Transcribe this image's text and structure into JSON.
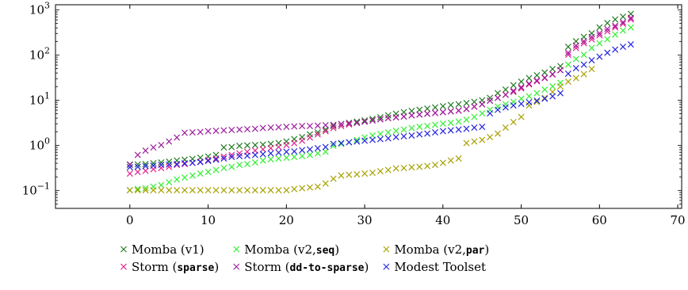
{
  "chart_data": {
    "type": "scatter",
    "title": "",
    "xlabel": "",
    "ylabel": "",
    "xlim": [
      -9.5,
      70.5
    ],
    "ylim": [
      0.04,
      1300
    ],
    "yscale": "log",
    "grid": false,
    "legend_position": "bottom",
    "x_ticks": [
      0,
      10,
      20,
      30,
      40,
      50,
      60,
      70
    ],
    "x_tick_labels": [
      "0",
      "10",
      "20",
      "30",
      "40",
      "50",
      "60",
      "70"
    ],
    "y_ticks": [
      0.1,
      1,
      10,
      100,
      1000
    ],
    "y_tick_labels": [
      {
        "base": "10",
        "exp": "−1"
      },
      {
        "base": "10",
        "exp": "0"
      },
      {
        "base": "10",
        "exp": "1"
      },
      {
        "base": "10",
        "exp": "2"
      },
      {
        "base": "10",
        "exp": "3"
      }
    ],
    "marker": "×",
    "series": [
      {
        "name": "Momba (v1)",
        "label_parts": [
          {
            "text": "Momba (v1)",
            "mono": false
          }
        ],
        "color": "#1e7a1e",
        "start": 0,
        "values": [
          0.36,
          0.37,
          0.38,
          0.39,
          0.41,
          0.43,
          0.45,
          0.47,
          0.49,
          0.52,
          0.55,
          0.6,
          0.88,
          0.9,
          0.95,
          0.98,
          1.0,
          1.02,
          1.05,
          1.1,
          1.2,
          1.35,
          1.5,
          1.7,
          1.9,
          2.2,
          2.6,
          2.9,
          3.1,
          3.3,
          3.5,
          3.8,
          4.1,
          4.5,
          4.9,
          5.3,
          5.7,
          6.0,
          6.4,
          6.8,
          7.2,
          7.6,
          8.0,
          8.5,
          9.0,
          9.7,
          11,
          14,
          17,
          21,
          25,
          30,
          35,
          40,
          48,
          56,
          150,
          200,
          250,
          300,
          400,
          500,
          600,
          700,
          800
        ]
      },
      {
        "name": "Momba (v2,seq)",
        "label_parts": [
          {
            "text": "Momba (v2,",
            "mono": false
          },
          {
            "text": "seq",
            "mono": true
          },
          {
            "text": ")",
            "mono": false
          }
        ],
        "color": "#33ee33",
        "start": 0,
        "values": [
          0.1,
          0.105,
          0.11,
          0.12,
          0.13,
          0.15,
          0.17,
          0.19,
          0.21,
          0.23,
          0.25,
          0.28,
          0.31,
          0.33,
          0.36,
          0.38,
          0.41,
          0.45,
          0.48,
          0.5,
          0.52,
          0.54,
          0.56,
          0.6,
          0.65,
          0.7,
          0.95,
          1.05,
          1.15,
          1.3,
          1.45,
          1.6,
          1.75,
          1.9,
          2.05,
          2.2,
          2.35,
          2.5,
          2.65,
          2.8,
          2.95,
          3.1,
          3.3,
          3.6,
          4.2,
          5.0,
          6.0,
          7.0,
          8.0,
          9.0,
          10.5,
          12,
          14,
          17,
          20,
          24,
          60,
          80,
          100,
          140,
          180,
          220,
          280,
          340,
          400
        ]
      },
      {
        "name": "Momba (v2,par)",
        "label_parts": [
          {
            "text": "Momba (v2,",
            "mono": false
          },
          {
            "text": "par",
            "mono": true
          },
          {
            "text": ")",
            "mono": false
          }
        ],
        "color": "#a8a000",
        "start": 0,
        "values": [
          0.1,
          0.1,
          0.1,
          0.1,
          0.1,
          0.1,
          0.1,
          0.1,
          0.1,
          0.1,
          0.1,
          0.1,
          0.1,
          0.1,
          0.1,
          0.1,
          0.1,
          0.1,
          0.1,
          0.1,
          0.1,
          0.105,
          0.11,
          0.115,
          0.12,
          0.14,
          0.18,
          0.21,
          0.22,
          0.225,
          0.23,
          0.24,
          0.26,
          0.28,
          0.3,
          0.31,
          0.32,
          0.33,
          0.34,
          0.36,
          0.4,
          0.45,
          0.5,
          1.1,
          1.2,
          1.3,
          1.5,
          1.8,
          2.4,
          3.2,
          4.2,
          7.5,
          9,
          11,
          15,
          20,
          25,
          30,
          37,
          48
        ]
      },
      {
        "name": "Storm (sparse)",
        "label_parts": [
          {
            "text": "Storm (",
            "mono": false
          },
          {
            "text": "sparse",
            "mono": true
          },
          {
            "text": ")",
            "mono": false
          }
        ],
        "color": "#e0208e",
        "start": 0,
        "values": [
          0.23,
          0.25,
          0.27,
          0.29,
          0.31,
          0.33,
          0.36,
          0.38,
          0.4,
          0.43,
          0.46,
          0.5,
          0.55,
          0.6,
          0.65,
          0.7,
          0.75,
          0.8,
          0.85,
          0.9,
          1.0,
          1.1,
          1.25,
          1.45,
          1.7,
          2.0,
          2.35,
          2.6,
          2.85,
          3.1,
          3.3,
          3.5,
          3.7,
          3.9,
          4.1,
          4.3,
          4.5,
          4.7,
          4.9,
          5.1,
          5.3,
          5.5,
          5.8,
          6.2,
          7.0,
          8.0,
          9.5,
          11,
          13,
          15,
          18,
          22,
          26,
          30,
          36,
          45,
          100,
          140,
          180,
          220,
          270,
          330,
          400,
          480,
          600
        ]
      },
      {
        "name": "Storm (dd-to-sparse)",
        "label_parts": [
          {
            "text": "Storm (",
            "mono": false
          },
          {
            "text": "dd-to-sparse",
            "mono": true
          },
          {
            "text": ")",
            "mono": false
          }
        ],
        "color": "#9b1a9b",
        "start": 0,
        "values": [
          0.37,
          0.6,
          0.75,
          0.88,
          1.0,
          1.2,
          1.45,
          1.85,
          1.9,
          1.95,
          2.0,
          2.05,
          2.1,
          2.15,
          2.2,
          2.25,
          2.3,
          2.35,
          2.4,
          2.45,
          2.5,
          2.55,
          2.6,
          2.65,
          2.7,
          2.75,
          2.8,
          2.9,
          3.0,
          3.1,
          3.3,
          3.5,
          3.7,
          3.9,
          4.1,
          4.3,
          4.5,
          4.7,
          4.9,
          5.1,
          5.3,
          5.5,
          5.8,
          6.2,
          7.0,
          8.0,
          9.5,
          11,
          13,
          16,
          19,
          23,
          27,
          31,
          37,
          45,
          110,
          160,
          200,
          250,
          300,
          370,
          440,
          520,
          650
        ]
      },
      {
        "name": "Modest Toolset",
        "label_parts": [
          {
            "text": "Modest Toolset",
            "mono": false
          }
        ],
        "color": "#2020e0",
        "start": 0,
        "values": [
          0.32,
          0.33,
          0.34,
          0.35,
          0.36,
          0.37,
          0.38,
          0.39,
          0.4,
          0.42,
          0.44,
          0.47,
          0.5,
          0.54,
          0.56,
          0.58,
          0.6,
          0.62,
          0.65,
          0.68,
          0.7,
          0.72,
          0.76,
          0.8,
          0.85,
          0.9,
          1.05,
          1.1,
          1.15,
          1.2,
          1.25,
          1.3,
          1.35,
          1.4,
          1.5,
          1.55,
          1.6,
          1.7,
          1.8,
          1.9,
          2.0,
          2.1,
          2.2,
          2.3,
          2.4,
          2.5,
          5.0,
          6.0,
          6.8,
          7.5,
          8.2,
          8.8,
          9.5,
          10.5,
          12,
          14,
          38,
          50,
          60,
          75,
          90,
          110,
          130,
          150,
          170
        ]
      }
    ]
  }
}
